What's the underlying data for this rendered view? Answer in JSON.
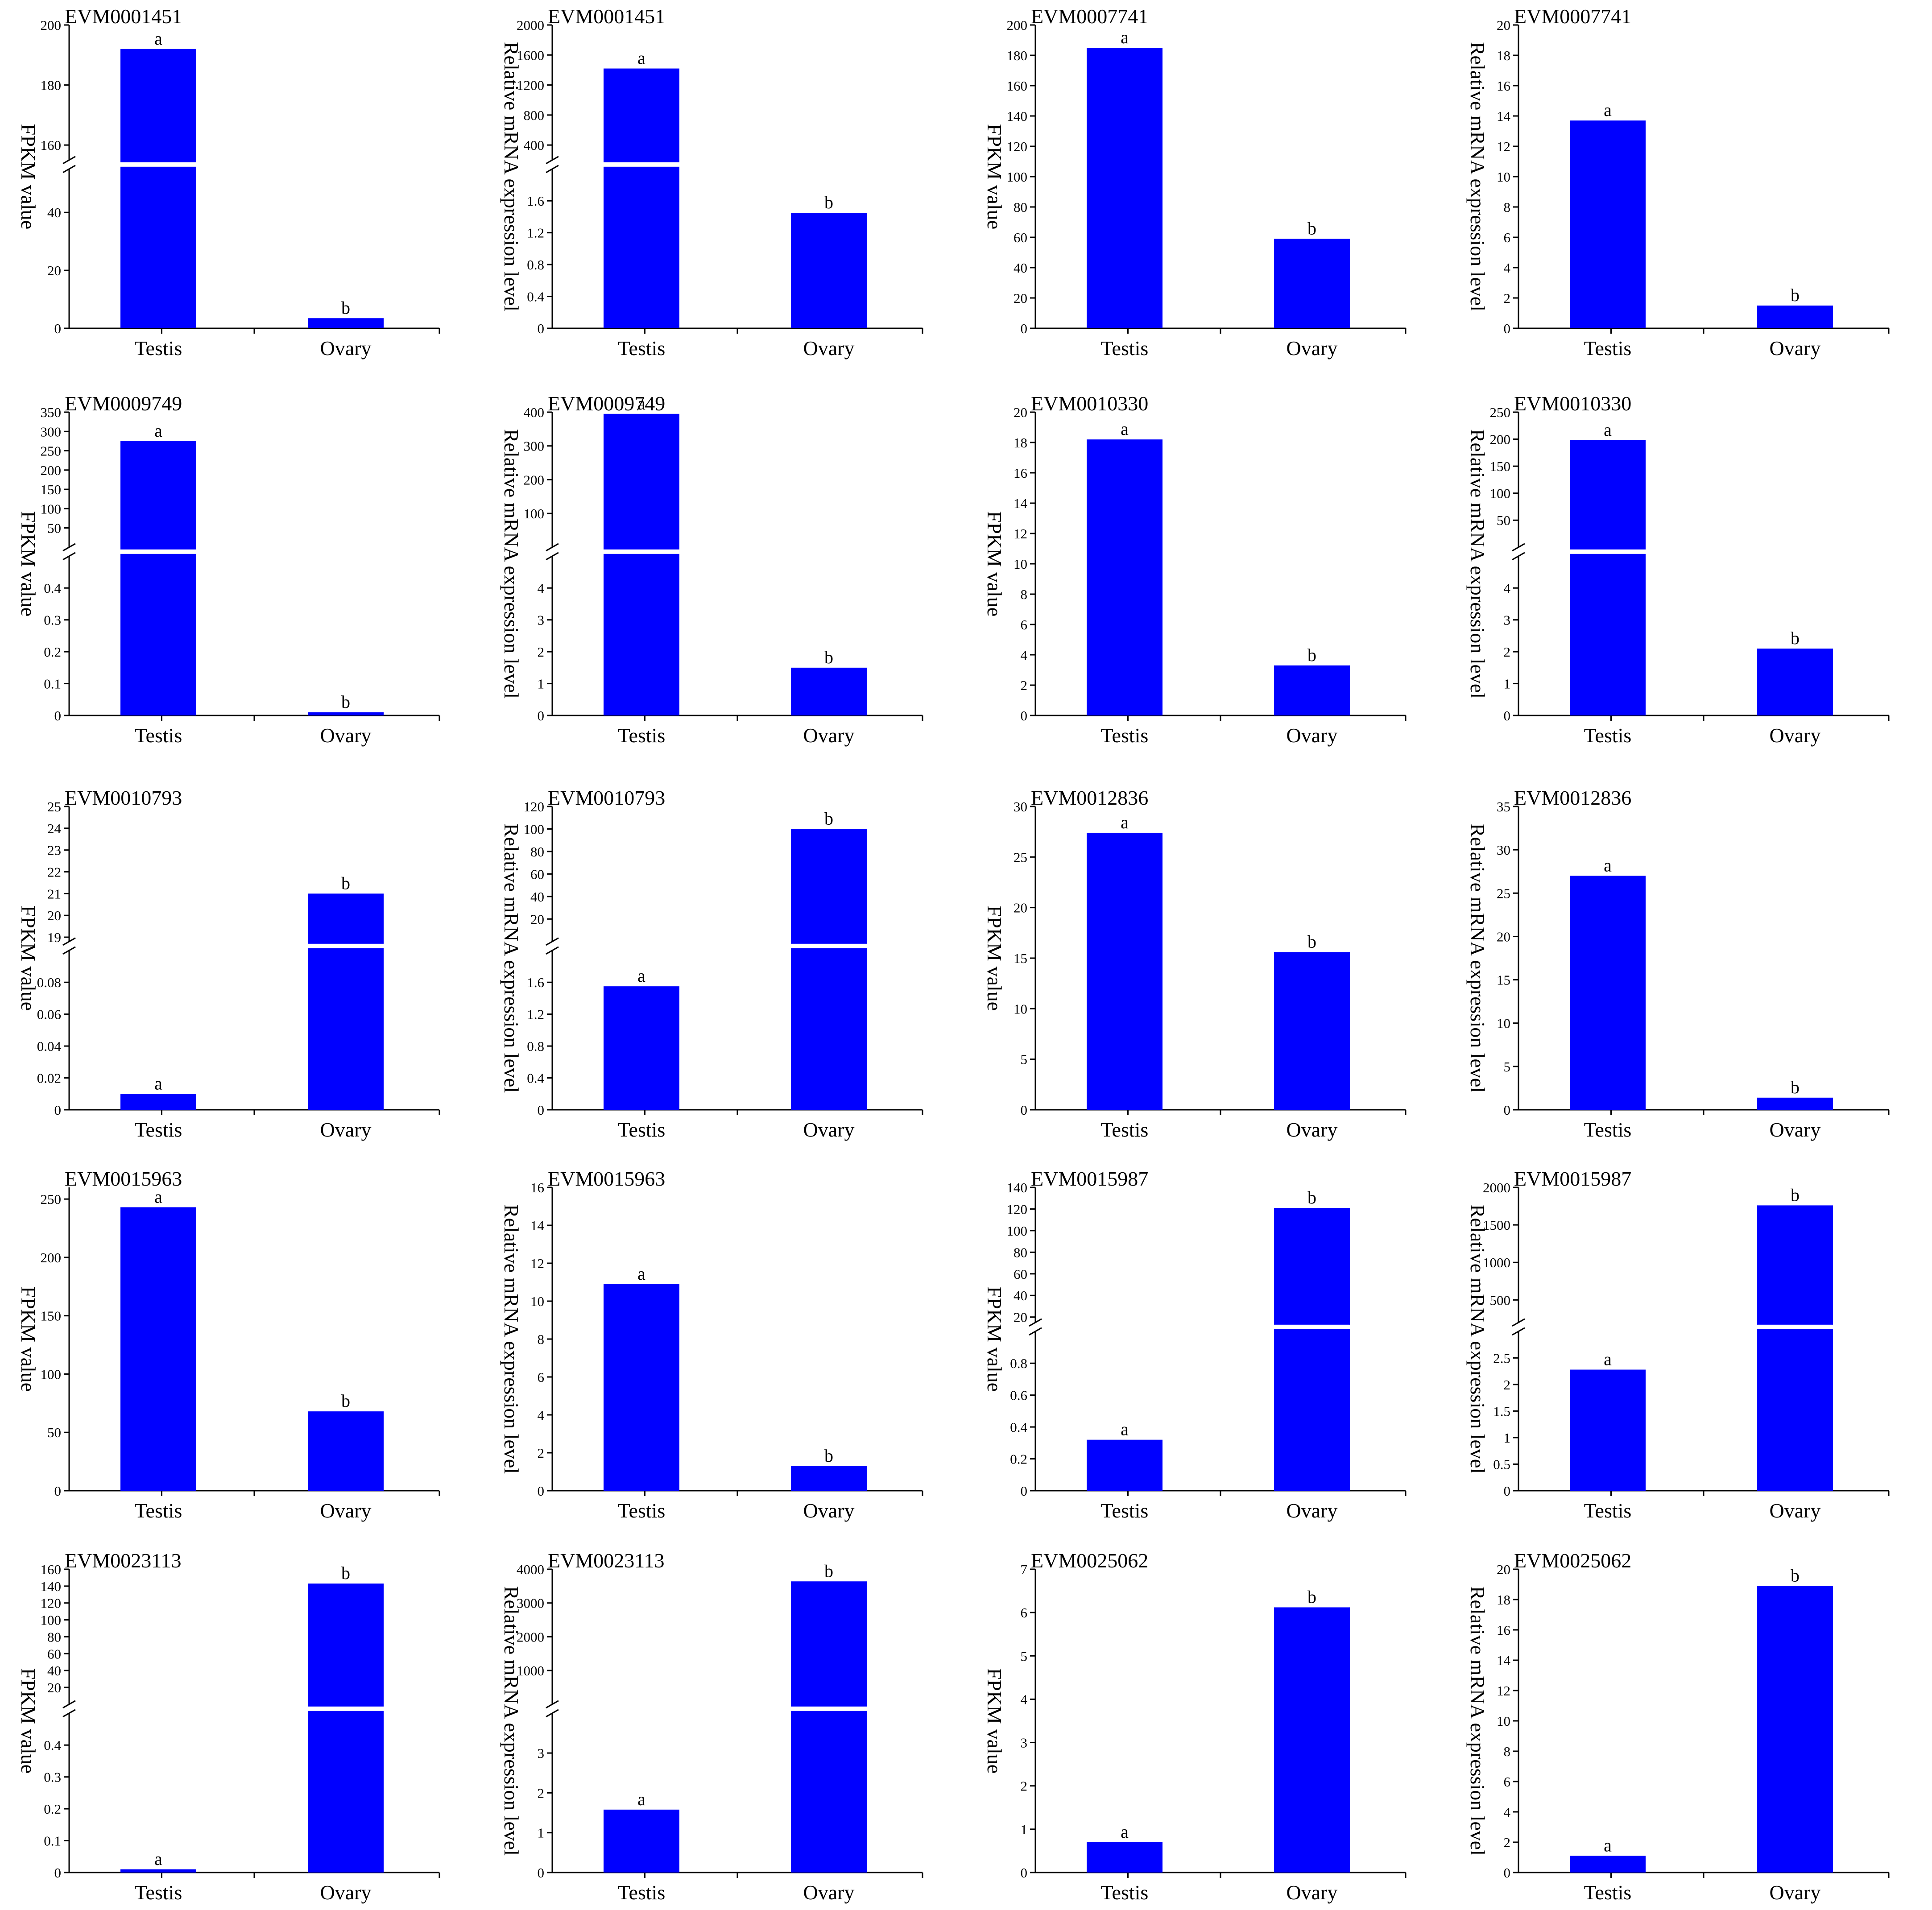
{
  "colors": {
    "bar": "#0000ff",
    "axis": "#000000",
    "break": "#ffffff"
  },
  "chart_data": [
    {
      "type": "bar",
      "title": "EVM0001451",
      "ylabel": "FPKM value",
      "categories": [
        "Testis",
        "Ovary"
      ],
      "values": [
        192,
        3.5
      ],
      "sig": [
        "a",
        "b"
      ],
      "axis_break": {
        "lower": [
          0,
          55
        ],
        "upper": [
          155,
          200
        ]
      },
      "lower_ticks": [
        0,
        20,
        40
      ],
      "upper_ticks": [
        160,
        180,
        200
      ]
    },
    {
      "type": "bar",
      "title": "EVM0001451",
      "ylabel": "Relative mRNA expression level",
      "categories": [
        "Testis",
        "Ovary"
      ],
      "values": [
        1420,
        1.45
      ],
      "sig": [
        "a",
        "b"
      ],
      "axis_break": {
        "lower": [
          0,
          2.0
        ],
        "upper": [
          200,
          2000
        ]
      },
      "lower_ticks": [
        0,
        0.4,
        0.8,
        1.2,
        1.6
      ],
      "upper_ticks": [
        400,
        800,
        1200,
        1600,
        2000
      ]
    },
    {
      "type": "bar",
      "title": "EVM0007741",
      "ylabel": "FPKM value",
      "categories": [
        "Testis",
        "Ovary"
      ],
      "values": [
        185,
        59
      ],
      "sig": [
        "a",
        "b"
      ],
      "ylim": [
        0,
        200
      ],
      "ticks": [
        0,
        20,
        40,
        60,
        80,
        100,
        120,
        140,
        160,
        180,
        200
      ]
    },
    {
      "type": "bar",
      "title": "EVM0007741",
      "ylabel": "Relative mRNA expression level",
      "categories": [
        "Testis",
        "Ovary"
      ],
      "values": [
        13.7,
        1.5
      ],
      "sig": [
        "a",
        "b"
      ],
      "ylim": [
        0,
        20
      ],
      "ticks": [
        0,
        2,
        4,
        6,
        8,
        10,
        12,
        14,
        16,
        18,
        20
      ]
    },
    {
      "type": "bar",
      "title": "EVM0009749",
      "ylabel": "FPKM value",
      "categories": [
        "Testis",
        "Ovary"
      ],
      "values": [
        275,
        0.01
      ],
      "sig": [
        "a",
        "b"
      ],
      "axis_break": {
        "lower": [
          0,
          0.5
        ],
        "upper": [
          0,
          350
        ]
      },
      "lower_ticks": [
        0,
        0.1,
        0.2,
        0.3,
        0.4
      ],
      "upper_ticks": [
        50,
        100,
        150,
        200,
        250,
        300,
        350
      ]
    },
    {
      "type": "bar",
      "title": "EVM0009749",
      "ylabel": "Relative mRNA expression level",
      "categories": [
        "Testis",
        "Ovary"
      ],
      "values": [
        395,
        1.5
      ],
      "sig": [
        "a",
        "b"
      ],
      "axis_break": {
        "lower": [
          0,
          5
        ],
        "upper": [
          0,
          400
        ]
      },
      "lower_ticks": [
        0,
        1,
        2,
        3,
        4
      ],
      "upper_ticks": [
        100,
        200,
        300,
        400
      ]
    },
    {
      "type": "bar",
      "title": "EVM0010330",
      "ylabel": "FPKM value",
      "categories": [
        "Testis",
        "Ovary"
      ],
      "values": [
        18.2,
        3.3
      ],
      "sig": [
        "a",
        "b"
      ],
      "ylim": [
        0,
        20
      ],
      "ticks": [
        0,
        2,
        4,
        6,
        8,
        10,
        12,
        14,
        16,
        18,
        20
      ]
    },
    {
      "type": "bar",
      "title": "EVM0010330",
      "ylabel": "Relative mRNA expression level",
      "categories": [
        "Testis",
        "Ovary"
      ],
      "values": [
        198,
        2.1
      ],
      "sig": [
        "a",
        "b"
      ],
      "axis_break": {
        "lower": [
          0,
          5
        ],
        "upper": [
          0,
          250
        ]
      },
      "lower_ticks": [
        0,
        1,
        2,
        3,
        4
      ],
      "upper_ticks": [
        50,
        100,
        150,
        200,
        250
      ]
    },
    {
      "type": "bar",
      "title": "EVM0010793",
      "ylabel": "FPKM value",
      "categories": [
        "Testis",
        "Ovary"
      ],
      "values": [
        0.01,
        21
      ],
      "sig": [
        "a",
        "b"
      ],
      "axis_break": {
        "lower": [
          0,
          0.1
        ],
        "upper": [
          18.8,
          25
        ]
      },
      "lower_ticks": [
        0,
        0.02,
        0.04,
        0.06,
        0.08
      ],
      "upper_ticks": [
        19,
        20,
        21,
        22,
        23,
        24,
        25
      ]
    },
    {
      "type": "bar",
      "title": "EVM0010793",
      "ylabel": "Relative mRNA expression level",
      "categories": [
        "Testis",
        "Ovary"
      ],
      "values": [
        1.55,
        100
      ],
      "sig": [
        "a",
        "b"
      ],
      "axis_break": {
        "lower": [
          0,
          2.0
        ],
        "upper": [
          0,
          120
        ]
      },
      "lower_ticks": [
        0,
        0.4,
        0.8,
        1.2,
        1.6
      ],
      "upper_ticks": [
        20,
        40,
        60,
        80,
        100,
        120
      ]
    },
    {
      "type": "bar",
      "title": "EVM0012836",
      "ylabel": "FPKM value",
      "categories": [
        "Testis",
        "Ovary"
      ],
      "values": [
        27.4,
        15.6
      ],
      "sig": [
        "a",
        "b"
      ],
      "ylim": [
        0,
        30
      ],
      "ticks": [
        0,
        5,
        10,
        15,
        20,
        25,
        30
      ]
    },
    {
      "type": "bar",
      "title": "EVM0012836",
      "ylabel": "Relative mRNA expression level",
      "categories": [
        "Testis",
        "Ovary"
      ],
      "values": [
        27,
        1.4
      ],
      "sig": [
        "a",
        "b"
      ],
      "ylim": [
        0,
        35
      ],
      "ticks": [
        0,
        5,
        10,
        15,
        20,
        25,
        30,
        35
      ]
    },
    {
      "type": "bar",
      "title": "EVM0015963",
      "ylabel": "FPKM value",
      "categories": [
        "Testis",
        "Ovary"
      ],
      "values": [
        243,
        68
      ],
      "sig": [
        "a",
        "b"
      ],
      "ylim": [
        0,
        260
      ],
      "ticks": [
        0,
        50,
        100,
        150,
        200,
        250
      ]
    },
    {
      "type": "bar",
      "title": "EVM0015963",
      "ylabel": "Relative mRNA expression level",
      "categories": [
        "Testis",
        "Ovary"
      ],
      "values": [
        10.9,
        1.3
      ],
      "sig": [
        "a",
        "b"
      ],
      "ylim": [
        0,
        16
      ],
      "ticks": [
        0,
        2,
        4,
        6,
        8,
        10,
        12,
        14,
        16
      ]
    },
    {
      "type": "bar",
      "title": "EVM0015987",
      "ylabel": "FPKM value",
      "categories": [
        "Testis",
        "Ovary"
      ],
      "values": [
        0.32,
        121
      ],
      "sig": [
        "a",
        "b"
      ],
      "axis_break": {
        "lower": [
          0,
          1.0
        ],
        "upper": [
          15,
          140
        ]
      },
      "lower_ticks": [
        0,
        0.2,
        0.4,
        0.6,
        0.8
      ],
      "upper_ticks": [
        20,
        40,
        60,
        80,
        100,
        120,
        140
      ]
    },
    {
      "type": "bar",
      "title": "EVM0015987",
      "ylabel": "Relative mRNA expression level",
      "categories": [
        "Testis",
        "Ovary"
      ],
      "values": [
        2.28,
        1760
      ],
      "sig": [
        "a",
        "b"
      ],
      "axis_break": {
        "lower": [
          0,
          3.0
        ],
        "upper": [
          200,
          2000
        ]
      },
      "lower_ticks": [
        0,
        0.5,
        1.0,
        1.5,
        2.0,
        2.5
      ],
      "upper_ticks": [
        500,
        1000,
        1500,
        2000
      ]
    },
    {
      "type": "bar",
      "title": "EVM0023113",
      "ylabel": "FPKM value",
      "categories": [
        "Testis",
        "Ovary"
      ],
      "values": [
        0.01,
        143
      ],
      "sig": [
        "a",
        "b"
      ],
      "axis_break": {
        "lower": [
          0,
          0.5
        ],
        "upper": [
          0,
          160
        ]
      },
      "lower_ticks": [
        0,
        0.1,
        0.2,
        0.3,
        0.4
      ],
      "upper_ticks": [
        20,
        40,
        60,
        80,
        100,
        120,
        140,
        160
      ]
    },
    {
      "type": "bar",
      "title": "EVM0023113",
      "ylabel": "Relative mRNA expression level",
      "categories": [
        "Testis",
        "Ovary"
      ],
      "values": [
        1.58,
        3640
      ],
      "sig": [
        "a",
        "b"
      ],
      "axis_break": {
        "lower": [
          0,
          4
        ],
        "upper": [
          0,
          4000
        ]
      },
      "lower_ticks": [
        0,
        1,
        2,
        3
      ],
      "upper_ticks": [
        1000,
        2000,
        3000,
        4000
      ]
    },
    {
      "type": "bar",
      "title": "EVM0025062",
      "ylabel": "FPKM value",
      "categories": [
        "Testis",
        "Ovary"
      ],
      "values": [
        0.7,
        6.12
      ],
      "sig": [
        "a",
        "b"
      ],
      "ylim": [
        0,
        7
      ],
      "ticks": [
        0,
        1,
        2,
        3,
        4,
        5,
        6,
        7
      ]
    },
    {
      "type": "bar",
      "title": "EVM0025062",
      "ylabel": "Relative mRNA expression level",
      "categories": [
        "Testis",
        "Ovary"
      ],
      "values": [
        1.1,
        18.9
      ],
      "sig": [
        "a",
        "b"
      ],
      "ylim": [
        0,
        20
      ],
      "ticks": [
        0,
        2,
        4,
        6,
        8,
        10,
        12,
        14,
        16,
        18,
        20
      ]
    }
  ]
}
